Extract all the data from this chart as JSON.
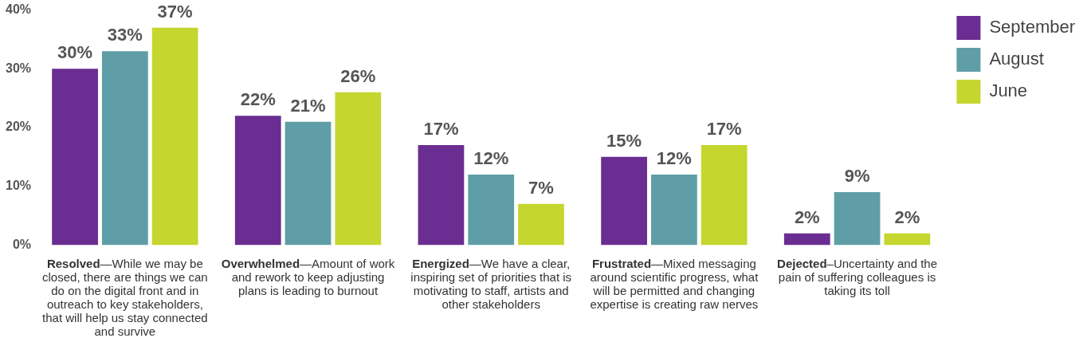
{
  "chart_data": {
    "type": "bar",
    "categories": [
      "Resolved—While we may be closed, there are things we can do on the digital front and in outreach to key stakeholders, that will help us stay connected and survive",
      "Overwhelmed—Amount of work and rework to keep adjusting plans is leading to burnout",
      "Energized—We have a clear, inspiring set of priorities that is motivating to staff, artists and other stakeholders",
      "Frustrated—Mixed messaging around scientific progress, what will be permitted and changing expertise is creating raw nerves",
      "Dejected–Uncertainty and the pain of suffering colleagues is taking its toll"
    ],
    "series": [
      {
        "name": "September",
        "color": "#6a2d91",
        "values": [
          30,
          22,
          17,
          15,
          2
        ]
      },
      {
        "name": "August",
        "color": "#5f9ea6",
        "values": [
          33,
          21,
          12,
          12,
          9
        ]
      },
      {
        "name": "June",
        "color": "#c5d62e",
        "values": [
          37,
          26,
          7,
          17,
          2
        ]
      }
    ],
    "value_labels": [
      [
        "30%",
        "22%",
        "17%",
        "15%",
        "2%"
      ],
      [
        "33%",
        "21%",
        "12%",
        "12%",
        "9%"
      ],
      [
        "37%",
        "26%",
        "7%",
        "17%",
        "2%"
      ]
    ],
    "ylim": [
      0,
      40
    ],
    "yticks": [
      {
        "value": 0,
        "label": "0%"
      },
      {
        "value": 10,
        "label": "10%"
      },
      {
        "value": 20,
        "label": "20%"
      },
      {
        "value": 30,
        "label": "30%"
      },
      {
        "value": 40,
        "label": "40%"
      }
    ],
    "grid": false,
    "legend": "top right"
  }
}
